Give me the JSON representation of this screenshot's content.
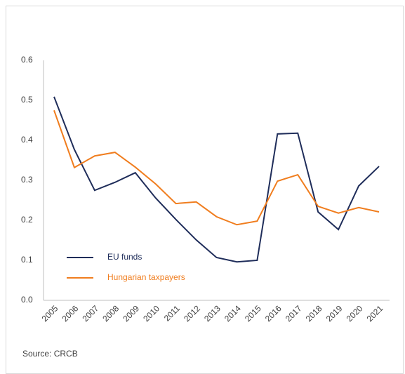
{
  "chart_data": {
    "type": "line",
    "categories": [
      "2005",
      "2006",
      "2007",
      "2008",
      "2009",
      "2010",
      "2011",
      "2012",
      "2013",
      "2014",
      "2015",
      "2016",
      "2017",
      "2018",
      "2019",
      "2020",
      "2021"
    ],
    "series": [
      {
        "name": "EU funds",
        "color": "#1f2d5a",
        "values": [
          0.509,
          0.377,
          0.275,
          0.295,
          0.319,
          0.256,
          0.202,
          0.151,
          0.107,
          0.096,
          0.1,
          0.416,
          0.418,
          0.221,
          0.177,
          0.286,
          0.335
        ]
      },
      {
        "name": "Hungarian taxpayers",
        "color": "#f07d1e",
        "values": [
          0.475,
          0.332,
          0.361,
          0.37,
          0.333,
          0.291,
          0.242,
          0.246,
          0.209,
          0.189,
          0.198,
          0.298,
          0.314,
          0.235,
          0.218,
          0.232,
          0.221
        ]
      }
    ],
    "ylim": [
      0,
      0.6
    ],
    "yticks": [
      {
        "value": 0,
        "label": "0.0"
      },
      0.1,
      0.2,
      0.3,
      0.4,
      0.5,
      0.6
    ],
    "grid": false,
    "legend": "lower-left",
    "source": "Source: CRCB"
  }
}
